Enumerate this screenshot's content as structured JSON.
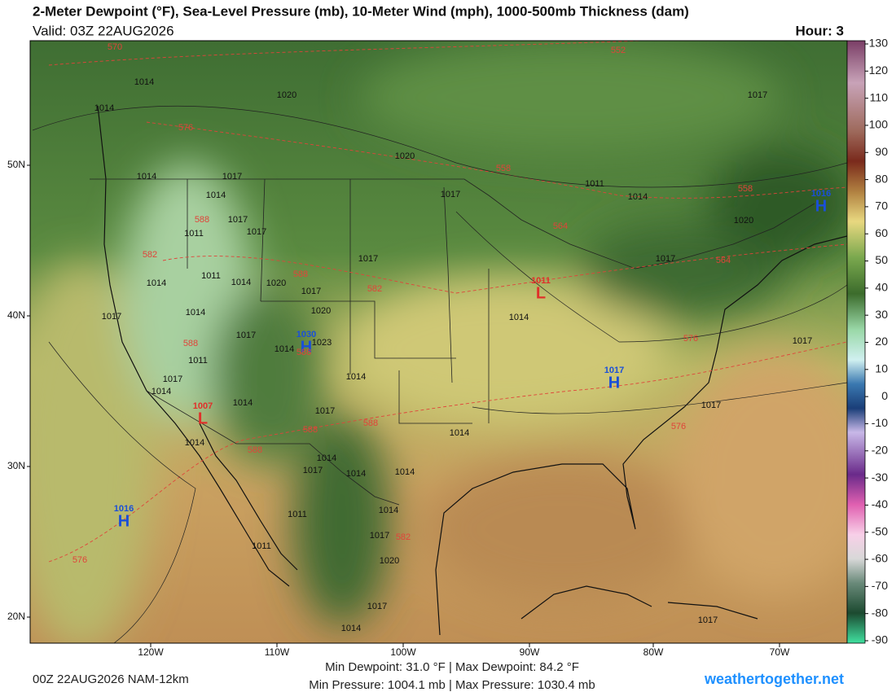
{
  "header": {
    "title": "2-Meter Dewpoint (°F), Sea-Level Pressure (mb), 10-Meter Wind (mph), 1000-500mb Thickness (dam)",
    "valid": "Valid: 03Z 22AUG2026",
    "hour": "Hour: 3"
  },
  "colorbar": {
    "ticks": [
      130,
      120,
      110,
      100,
      90,
      80,
      70,
      60,
      50,
      40,
      30,
      20,
      10,
      0,
      -10,
      -20,
      -30,
      -40,
      -50,
      -60,
      -70,
      -80,
      -90
    ]
  },
  "map": {
    "lat_labels": [
      "50N",
      "40N",
      "30N",
      "20N"
    ],
    "lon_labels": [
      "120W",
      "110W",
      "100W",
      "90W",
      "80W",
      "70W"
    ],
    "centers": [
      {
        "letter": "H",
        "value": 1016
      },
      {
        "letter": "H",
        "value": 1030
      },
      {
        "letter": "H",
        "value": 1017
      },
      {
        "letter": "H",
        "value": 1016
      },
      {
        "letter": "L",
        "value": 1007
      },
      {
        "letter": "L",
        "value": 1011
      }
    ],
    "pressure_labels": [
      1014,
      1014,
      1020,
      1020,
      1017,
      1014,
      1017,
      1014,
      1017,
      1011,
      1017,
      1017,
      1011,
      1014,
      1020,
      1017,
      1017,
      1014,
      1011,
      1014,
      1020,
      1017,
      1020,
      1017,
      1014,
      1017,
      1014,
      1023,
      1014,
      1011,
      1017,
      1014,
      1014,
      1014,
      1017,
      1014,
      1017,
      1017,
      1014,
      1017,
      1014,
      1014,
      1014,
      1011,
      1014,
      1017,
      1011,
      1020,
      1017,
      1014,
      1017
    ],
    "thickness_labels": [
      570,
      552,
      576,
      558,
      558,
      564,
      564,
      588,
      582,
      588,
      582,
      588,
      588,
      576,
      588,
      588,
      588,
      576,
      582,
      576
    ]
  },
  "footer": {
    "run": "00Z 22AUG2026 NAM-12km",
    "dewpoint": "Min Dewpoint: 31.0 °F | Max Dewpoint: 84.2 °F",
    "pressure": "Min Pressure: 1004.1 mb | Max Pressure: 1030.4 mb",
    "site": "weathertogether.net"
  }
}
